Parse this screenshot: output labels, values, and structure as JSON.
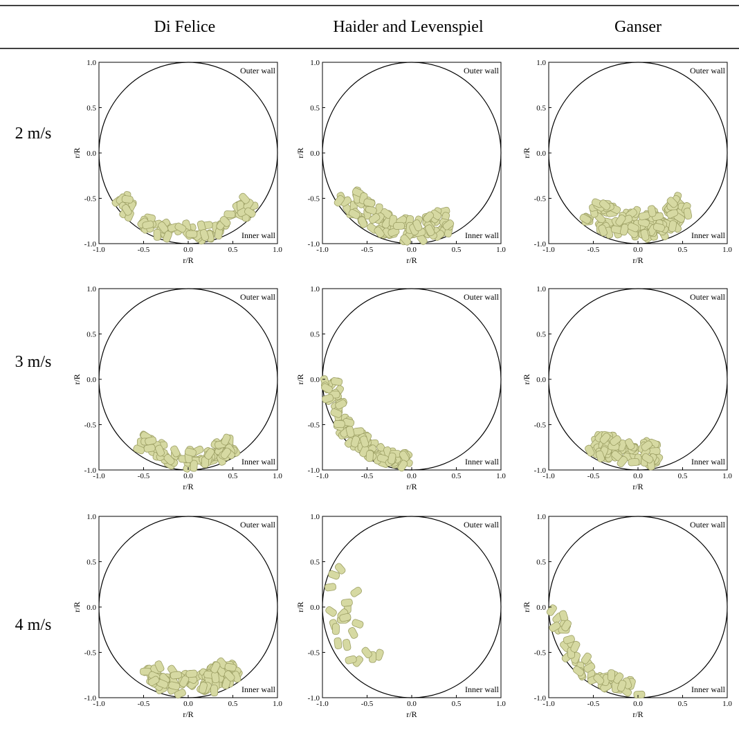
{
  "header": {
    "columns": [
      "Di Felice",
      "Haider and Levenspiel",
      "Ganser"
    ]
  },
  "rows": [
    "2 m/s",
    "3 m/s",
    "4 m/s"
  ],
  "panel": {
    "xlabel": "r/R",
    "ylabel": "r/R",
    "xlim": [
      -1,
      1
    ],
    "ylim": [
      -1,
      1
    ],
    "xticks": [
      {
        "value": -1,
        "label": "-1.0"
      },
      {
        "value": -0.5,
        "label": "-0.5"
      },
      {
        "value": 0,
        "label": "0.0"
      },
      {
        "value": 0.5,
        "label": "0.5"
      },
      {
        "value": 1,
        "label": "1.0"
      }
    ],
    "yticks": [
      {
        "value": -1,
        "label": "-1.0"
      },
      {
        "value": -0.5,
        "label": "-0.5"
      },
      {
        "value": 0,
        "label": "0.0"
      },
      {
        "value": 0.5,
        "label": "0.5"
      },
      {
        "value": 1,
        "label": "1.0"
      }
    ],
    "outer_label": "Outer wall",
    "inner_label": "Inner wall"
  }
}
